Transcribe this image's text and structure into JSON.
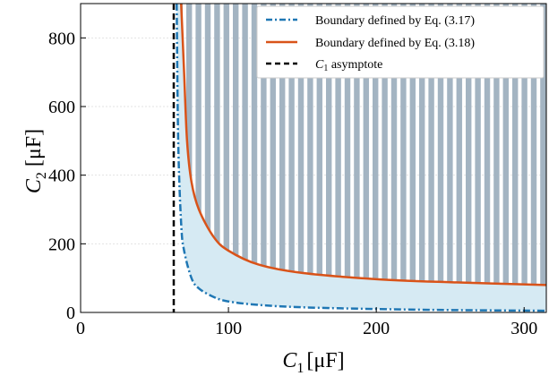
{
  "chart_data": {
    "type": "line",
    "x_axis": {
      "symbol": "C",
      "subscript": "1",
      "unit": "[μF]",
      "ticks": [
        0,
        100,
        200,
        300
      ],
      "lim": [
        0,
        315
      ]
    },
    "y_axis": {
      "symbol": "C",
      "subscript": "2",
      "unit": "[μF]",
      "ticks": [
        0,
        200,
        400,
        600,
        800
      ],
      "lim": [
        0,
        900
      ]
    },
    "grid": true,
    "legend_position": "top-right",
    "legend": [
      {
        "text": "Boundary defined by Eq. (3.17)",
        "style": "dash-dot",
        "color": "#1f77b4"
      },
      {
        "text": "Boundary defined by Eq. (3.18)",
        "style": "solid",
        "color": "#d95319"
      },
      {
        "italic": "C",
        "sub": "1",
        "text": " asymptote",
        "style": "dashed",
        "color": "#000000"
      }
    ],
    "series": [
      {
        "key": "eq317",
        "color": "#1f77b4",
        "points": [
          [
            65,
            900
          ],
          [
            66,
            500
          ],
          [
            68,
            260
          ],
          [
            70,
            180
          ],
          [
            75,
            100
          ],
          [
            80,
            70
          ],
          [
            90,
            45
          ],
          [
            100,
            32
          ],
          [
            120,
            22
          ],
          [
            150,
            15
          ],
          [
            200,
            10
          ],
          [
            250,
            7
          ],
          [
            315,
            5
          ]
        ]
      },
      {
        "key": "eq318",
        "color": "#d95319",
        "points": [
          [
            68,
            900
          ],
          [
            70,
            700
          ],
          [
            72,
            500
          ],
          [
            75,
            380
          ],
          [
            80,
            300
          ],
          [
            90,
            220
          ],
          [
            100,
            180
          ],
          [
            120,
            140
          ],
          [
            150,
            115
          ],
          [
            200,
            97
          ],
          [
            250,
            88
          ],
          [
            315,
            80
          ]
        ]
      }
    ],
    "asymptote": {
      "x": 63,
      "color": "#000000"
    },
    "regions": {
      "shaded_fill": "#d6eaf3",
      "hatched_fill": "#a3b4c2"
    }
  }
}
